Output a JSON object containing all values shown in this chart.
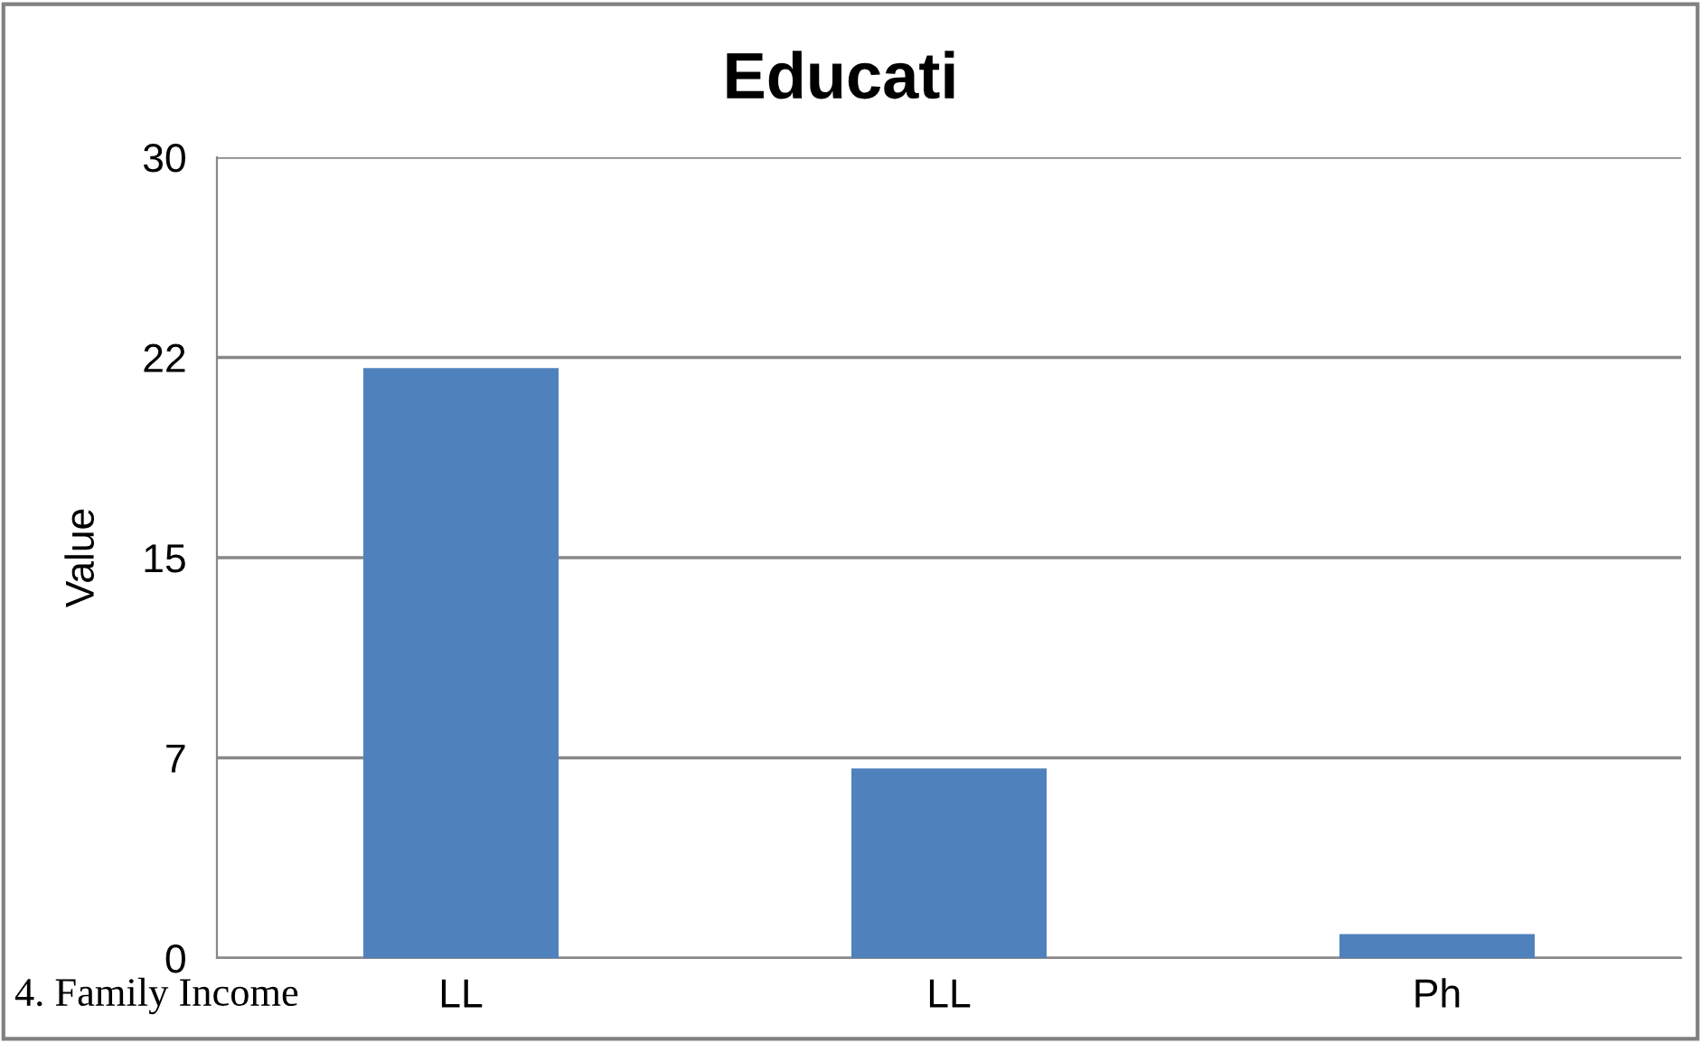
{
  "chart_data": {
    "type": "bar",
    "title": "Educati",
    "ylabel": "Value",
    "categories": [
      "LL",
      "LL",
      "Ph"
    ],
    "values": [
      22.1,
      7.1,
      0.9
    ],
    "color": "#4f81bd",
    "ylim": [
      0,
      30
    ],
    "yticks": [
      0,
      {
        "value": 7.5,
        "label": "7"
      },
      15,
      {
        "value": 22.5,
        "label": "22"
      },
      30
    ],
    "grid": "y",
    "legend": false,
    "annotations": [
      "4. Family Income"
    ]
  }
}
